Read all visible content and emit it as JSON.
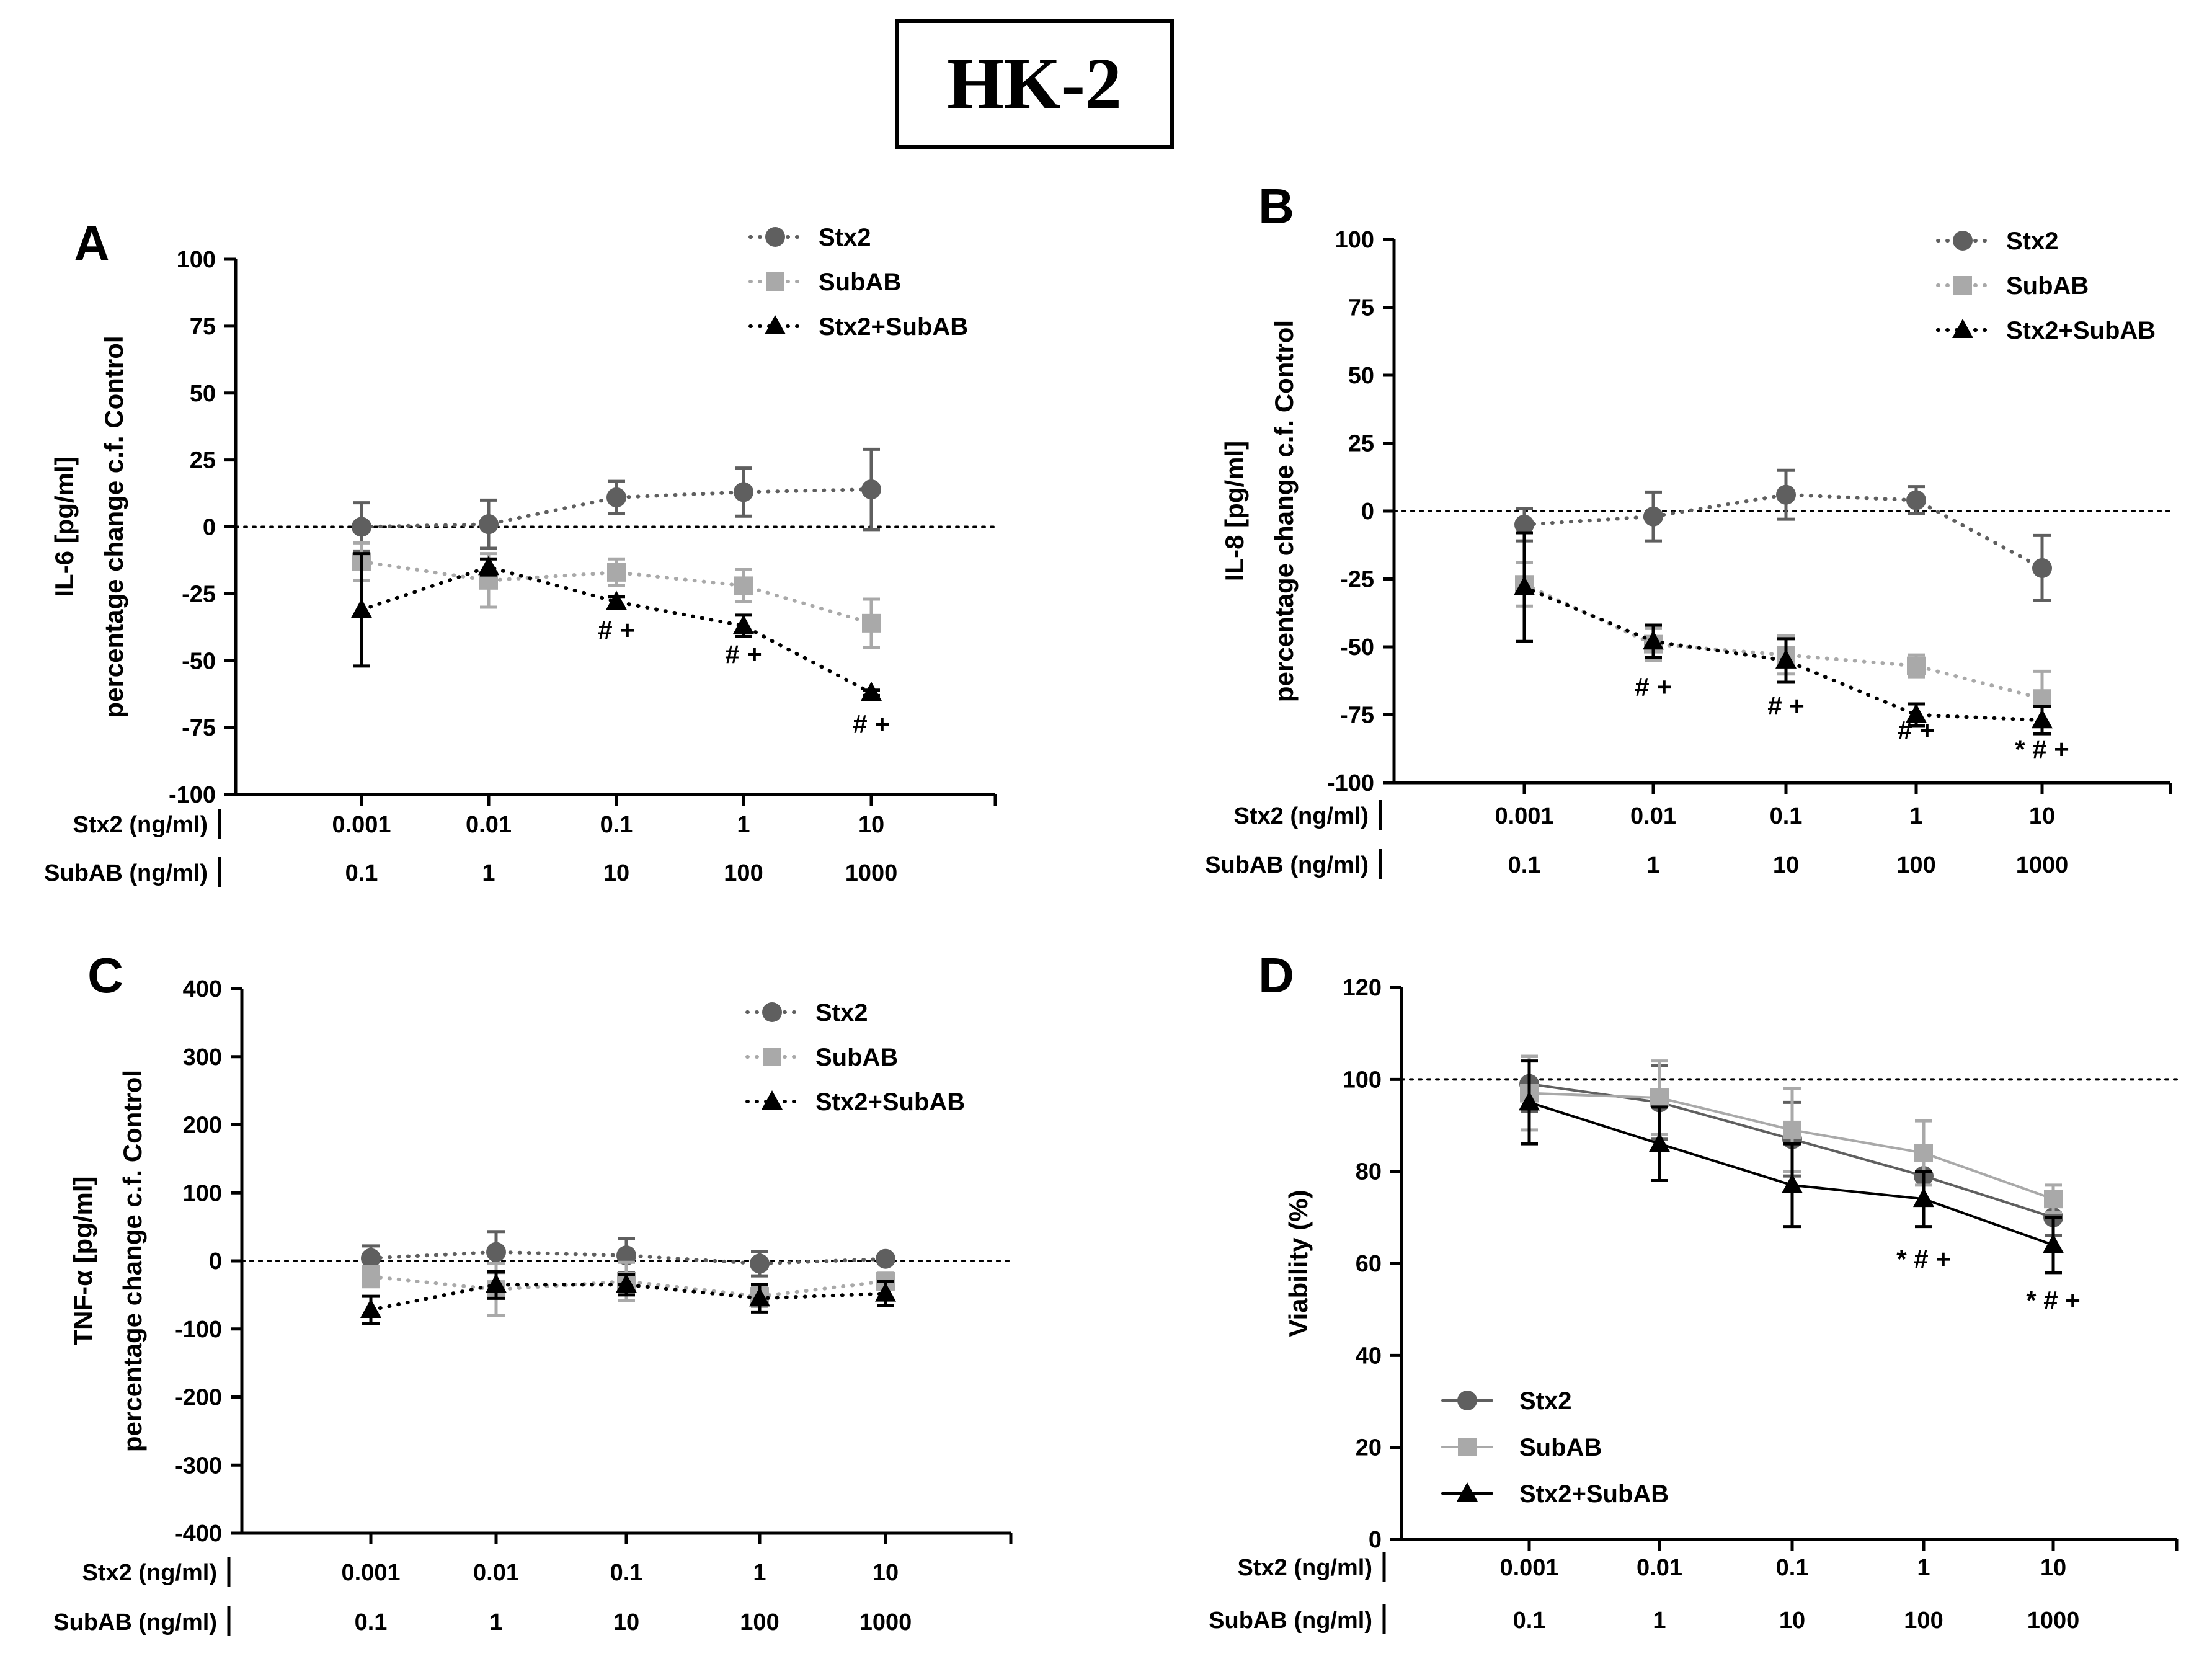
{
  "figure_title": "HK-2",
  "colors": {
    "stx2": "#5f5f5f",
    "subab": "#a9a9a9",
    "combo": "#000000",
    "axis": "#000000"
  },
  "chart_data": [
    {
      "panel": "A",
      "type": "line",
      "line_style": "dotted",
      "ylabel_line1": "IL-6 [pg/ml]",
      "ylabel_line2": "percentage change c.f. Control",
      "ylim": [
        -100,
        100
      ],
      "yticks": [
        100,
        75,
        50,
        25,
        0,
        -25,
        -50,
        -75,
        -100
      ],
      "reference_line": 0,
      "xlabel_rows": [
        {
          "label": "Stx2 (ng/ml)",
          "ticks": [
            "0.001",
            "0.01",
            "0.1",
            "1",
            "10"
          ]
        },
        {
          "label": "SubAB (ng/ml)",
          "ticks": [
            "0.1",
            "1",
            "10",
            "100",
            "1000"
          ]
        }
      ],
      "legend_position": "top-right",
      "series": [
        {
          "name": "Stx2",
          "marker": "circle",
          "values": [
            0,
            1,
            11,
            13,
            14
          ],
          "err": [
            9,
            9,
            6,
            9,
            15
          ]
        },
        {
          "name": "SubAB",
          "marker": "square",
          "values": [
            -13,
            -20,
            -17,
            -22,
            -36
          ],
          "err": [
            7,
            10,
            5,
            6,
            9
          ]
        },
        {
          "name": "Stx2+SubAB",
          "marker": "triangle",
          "values": [
            -31,
            -15,
            -28,
            -37,
            -62
          ],
          "err": [
            21,
            3,
            2,
            4,
            1
          ]
        }
      ],
      "annotations": [
        {
          "x_index": 2,
          "y": -42,
          "text": "# +"
        },
        {
          "x_index": 3,
          "y": -51,
          "text": "# +"
        },
        {
          "x_index": 4,
          "y": -77,
          "text": "# +"
        }
      ]
    },
    {
      "panel": "B",
      "type": "line",
      "line_style": "dotted",
      "ylabel_line1": "IL-8 [pg/ml]",
      "ylabel_line2": "percentage change c.f. Control",
      "ylim": [
        -100,
        100
      ],
      "yticks": [
        100,
        75,
        50,
        25,
        0,
        -25,
        -50,
        -75,
        -100
      ],
      "reference_line": 0,
      "xlabel_rows": [
        {
          "label": "Stx2 (ng/ml)",
          "ticks": [
            "0.001",
            "0.01",
            "0.1",
            "1",
            "10"
          ]
        },
        {
          "label": "SubAB (ng/ml)",
          "ticks": [
            "0.1",
            "1",
            "10",
            "100",
            "1000"
          ]
        }
      ],
      "legend_position": "top-right",
      "series": [
        {
          "name": "Stx2",
          "marker": "circle",
          "values": [
            -5,
            -2,
            6,
            4,
            -21
          ],
          "err": [
            6,
            9,
            9,
            5,
            12
          ]
        },
        {
          "name": "SubAB",
          "marker": "square",
          "values": [
            -27,
            -49,
            -53,
            -57,
            -69
          ],
          "err": [
            8,
            6,
            7,
            4,
            10
          ]
        },
        {
          "name": "Stx2+SubAB",
          "marker": "triangle",
          "values": [
            -28,
            -48,
            -55,
            -75,
            -77
          ],
          "err": [
            20,
            6,
            8,
            4,
            5
          ]
        }
      ],
      "annotations": [
        {
          "x_index": 1,
          "y": -68,
          "text": "# +"
        },
        {
          "x_index": 2,
          "y": -75,
          "text": "# +"
        },
        {
          "x_index": 3,
          "y": -84,
          "text": "# +"
        },
        {
          "x_index": 4,
          "y": -91,
          "text": "* # +"
        }
      ]
    },
    {
      "panel": "C",
      "type": "line",
      "line_style": "dotted",
      "ylabel_line1": "TNF-α [pg/ml]",
      "ylabel_line2": "percentage change c.f. Control",
      "ylim": [
        -400,
        400
      ],
      "yticks": [
        400,
        300,
        200,
        100,
        0,
        -100,
        -200,
        -300,
        -400
      ],
      "reference_line": 0,
      "xlabel_rows": [
        {
          "label": "Stx2 (ng/ml)",
          "ticks": [
            "0.001",
            "0.01",
            "0.1",
            "1",
            "10"
          ]
        },
        {
          "label": "SubAB (ng/ml)",
          "ticks": [
            "0.1",
            "1",
            "10",
            "100",
            "1000"
          ]
        }
      ],
      "legend_position": "top-right",
      "series": [
        {
          "name": "Stx2",
          "marker": "circle",
          "values": [
            4,
            13,
            8,
            -4,
            3
          ],
          "err": [
            18,
            30,
            25,
            18,
            5
          ]
        },
        {
          "name": "SubAB",
          "marker": "square",
          "values": [
            -23,
            -42,
            -30,
            -52,
            -30
          ],
          "err": [
            15,
            38,
            28,
            15,
            12
          ]
        },
        {
          "name": "Stx2+SubAB",
          "marker": "triangle",
          "values": [
            -72,
            -35,
            -35,
            -55,
            -48
          ],
          "err": [
            20,
            20,
            15,
            20,
            18
          ]
        }
      ],
      "annotations": []
    },
    {
      "panel": "D",
      "type": "line",
      "line_style": "solid",
      "ylabel_line1": "Viability (%)",
      "ylabel_line2": "",
      "ylim": [
        0,
        120
      ],
      "yticks": [
        120,
        100,
        80,
        60,
        40,
        20,
        0
      ],
      "reference_line": 100,
      "xlabel_rows": [
        {
          "label": "Stx2 (ng/ml)",
          "ticks": [
            "0.001",
            "0.01",
            "0.1",
            "1",
            "10"
          ]
        },
        {
          "label": "SubAB (ng/ml)",
          "ticks": [
            "0.1",
            "1",
            "10",
            "100",
            "1000"
          ]
        }
      ],
      "legend_position": "bottom-left",
      "series": [
        {
          "name": "Stx2",
          "marker": "circle",
          "values": [
            99,
            95,
            87,
            79,
            70
          ],
          "err": [
            6,
            8,
            8,
            6,
            4
          ]
        },
        {
          "name": "SubAB",
          "marker": "square",
          "values": [
            97,
            96,
            89,
            84,
            74
          ],
          "err": [
            8,
            8,
            9,
            7,
            3
          ]
        },
        {
          "name": "Stx2+SubAB",
          "marker": "triangle",
          "values": [
            95,
            86,
            77,
            74,
            64
          ],
          "err": [
            9,
            8,
            9,
            6,
            6
          ]
        }
      ],
      "annotations": [
        {
          "x_index": 3,
          "y": 59,
          "text": "* # +"
        },
        {
          "x_index": 4,
          "y": 50,
          "text": "* # +"
        }
      ]
    }
  ]
}
